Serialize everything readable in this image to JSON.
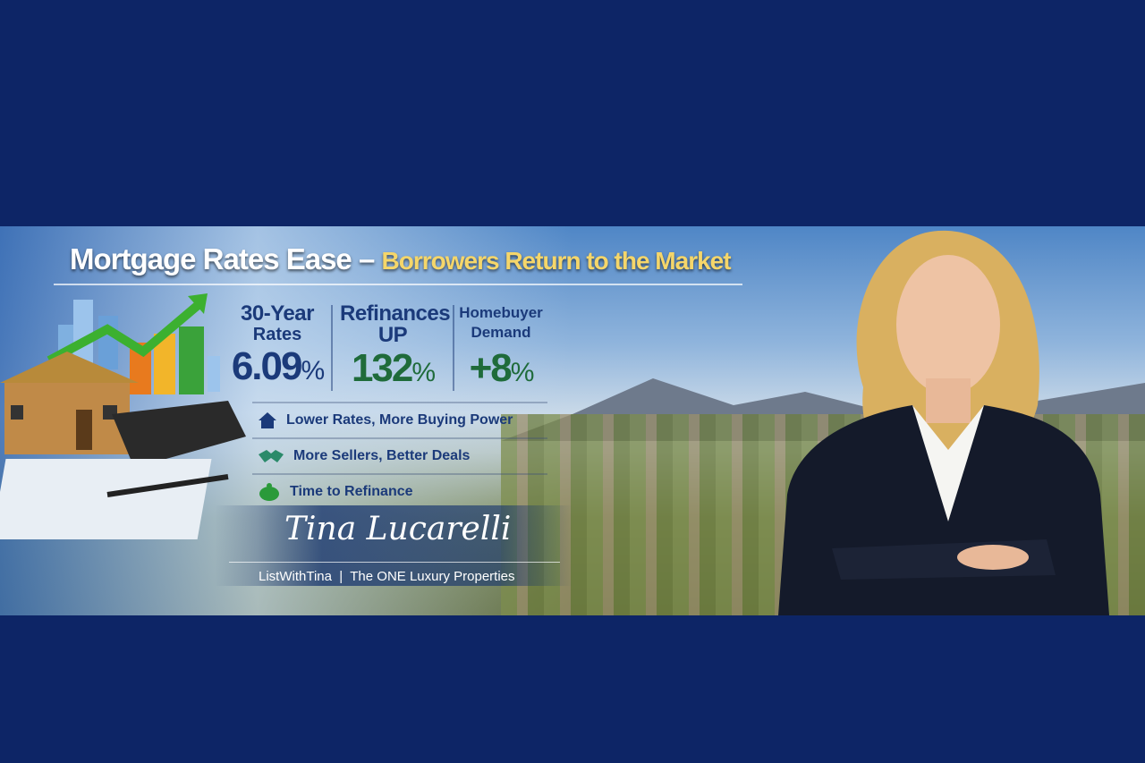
{
  "headline": {
    "part1": "Mortgage Rates Ease",
    "dash": " – ",
    "part2": "Borrowers Return to the Market"
  },
  "stats": [
    {
      "line1": "30-Year",
      "line2": "Rates",
      "value": "6.09",
      "unit": "%"
    },
    {
      "line1": "Refinances",
      "line2": "UP",
      "value": "132",
      "unit": "%"
    },
    {
      "line1": "Homebuyer",
      "line2": "Demand",
      "value": "+8",
      "unit": "%"
    }
  ],
  "bullets": [
    {
      "icon": "house-icon",
      "text": "Lower Rates, More Buying Power"
    },
    {
      "icon": "handshake-icon",
      "text": "More Sellers, Better Deals"
    },
    {
      "icon": "piggy-bank-icon",
      "text": "Time to Refinance"
    }
  ],
  "signature": "Tina Lucarelli",
  "tagline": "ListWithTina  |  The ONE Luxury Properties",
  "colors": {
    "navy": "#0d2566",
    "blue_text": "#1b3a7a",
    "green_text": "#1f6b3a",
    "gold": "#f5d66a"
  }
}
